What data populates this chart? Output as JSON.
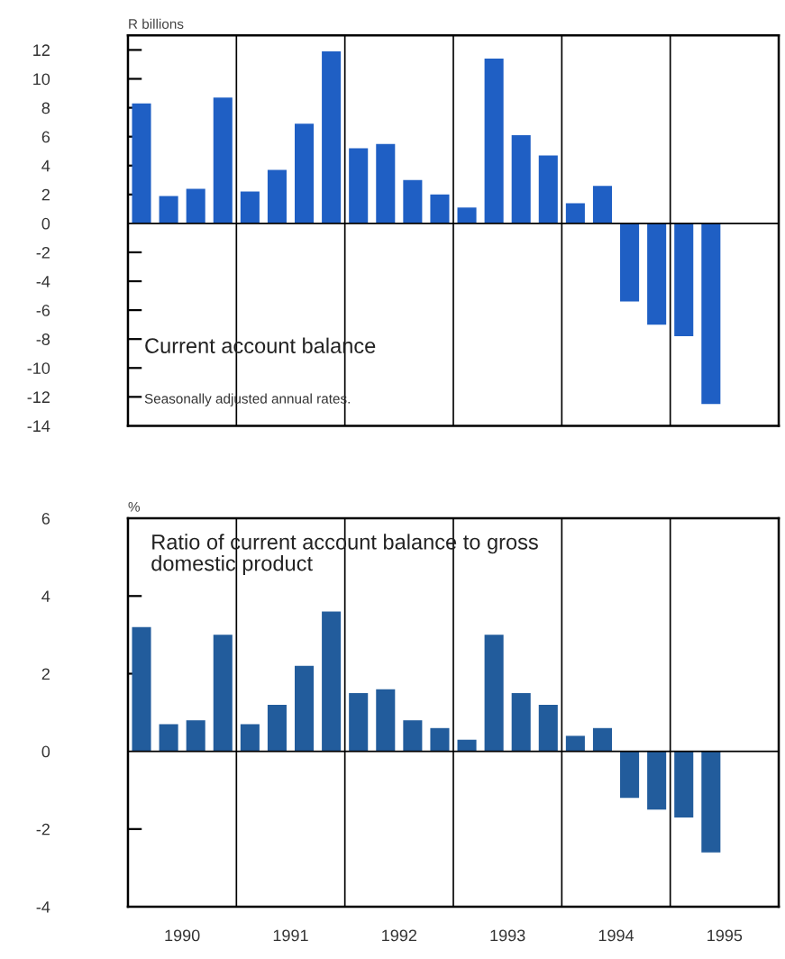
{
  "chart_data": [
    {
      "type": "bar",
      "title": "Current account balance",
      "subtitle": "Seasonally adjusted annual rates.",
      "ylabel": "R billions",
      "x": [
        1990.125,
        1990.375,
        1990.625,
        1990.875,
        1991.125,
        1991.375,
        1991.625,
        1991.875,
        1992.125,
        1992.375,
        1992.625,
        1992.875,
        1993.125,
        1993.375,
        1993.625,
        1993.875,
        1994.125,
        1994.375,
        1994.625,
        1994.875,
        1995.125,
        1995.375
      ],
      "values": [
        8.3,
        1.9,
        2.4,
        8.7,
        2.2,
        3.7,
        6.9,
        11.9,
        5.2,
        5.5,
        3.0,
        2.0,
        1.1,
        11.4,
        6.1,
        4.7,
        1.4,
        2.6,
        -5.4,
        -7.0,
        -7.8,
        -12.5
      ],
      "color": "#1f5fc4",
      "xlim": [
        1990,
        1996
      ],
      "ylim": [
        -14,
        13
      ],
      "yticks": [
        12,
        10,
        8,
        6,
        4,
        2,
        0,
        -2,
        -4,
        -6,
        -8,
        -10,
        -12,
        -14
      ],
      "tick_labels": "y",
      "grid": false,
      "legend": false,
      "ref_lines": [
        {
          "axis": "y",
          "value": 0,
          "color": "#000000"
        },
        {
          "axis": "x",
          "value": 1991,
          "color": "#000000"
        },
        {
          "axis": "x",
          "value": 1992,
          "color": "#000000"
        },
        {
          "axis": "x",
          "value": 1993,
          "color": "#000000"
        },
        {
          "axis": "x",
          "value": 1994,
          "color": "#000000"
        },
        {
          "axis": "x",
          "value": 1995,
          "color": "#000000"
        }
      ]
    },
    {
      "type": "bar",
      "title": "Ratio of current account balance to gross\ndomestic product",
      "ylabel": "%",
      "x": [
        1990.125,
        1990.375,
        1990.625,
        1990.875,
        1991.125,
        1991.375,
        1991.625,
        1991.875,
        1992.125,
        1992.375,
        1992.625,
        1992.875,
        1993.125,
        1993.375,
        1993.625,
        1993.875,
        1994.125,
        1994.375,
        1994.625,
        1994.875,
        1995.125,
        1995.375
      ],
      "values": [
        3.2,
        0.7,
        0.8,
        3.0,
        0.7,
        1.2,
        2.2,
        3.6,
        1.5,
        1.6,
        0.8,
        0.6,
        0.3,
        3.0,
        1.5,
        1.2,
        0.4,
        0.6,
        -1.2,
        -1.5,
        -1.7,
        -2.6
      ],
      "color": "#225c9c",
      "xlim": [
        1990,
        1996
      ],
      "ylim": [
        -4,
        6
      ],
      "xticks": [
        {
          "value": 1990.5,
          "label": "1990"
        },
        {
          "value": 1991.5,
          "label": "1991"
        },
        {
          "value": 1992.5,
          "label": "1992"
        },
        {
          "value": 1993.5,
          "label": "1993"
        },
        {
          "value": 1994.5,
          "label": "1994"
        },
        {
          "value": 1995.5,
          "label": "1995"
        }
      ],
      "yticks": [
        6,
        4,
        2,
        0,
        -2,
        -4
      ],
      "grid": false,
      "legend": false,
      "ref_lines": [
        {
          "axis": "y",
          "value": 0,
          "color": "#000000"
        },
        {
          "axis": "x",
          "value": 1991,
          "color": "#000000"
        },
        {
          "axis": "x",
          "value": 1992,
          "color": "#000000"
        },
        {
          "axis": "x",
          "value": 1993,
          "color": "#000000"
        },
        {
          "axis": "x",
          "value": 1994,
          "color": "#000000"
        },
        {
          "axis": "x",
          "value": 1995,
          "color": "#000000"
        }
      ]
    }
  ]
}
